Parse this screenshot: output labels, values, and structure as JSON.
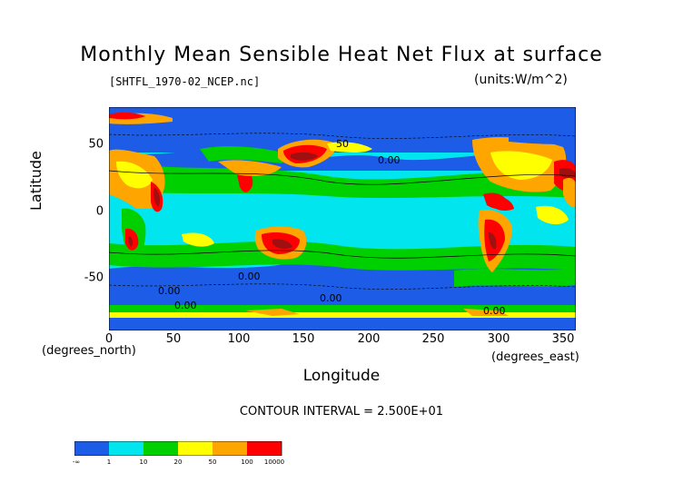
{
  "title": "Monthly Mean Sensible Heat Net Flux at surface",
  "subtitle_left": "[SHTFL_1970-02_NCEP.nc]",
  "subtitle_right": "(units:W/m^2)",
  "axes": {
    "ylabel": "Latitude",
    "xlabel": "Longitude",
    "x_unit_left": "(degrees_north)",
    "x_unit_right": "(degrees_east)",
    "x_ticks": [
      "0",
      "50",
      "100",
      "150",
      "200",
      "250",
      "300",
      "350"
    ],
    "y_ticks": [
      "50",
      "0",
      "-50"
    ]
  },
  "contour_interval": "CONTOUR INTERVAL = 2.500E+01",
  "contour_labels": [
    "50",
    "0.00",
    "0.00",
    "0.00",
    "0.00",
    "0.00",
    "0.00"
  ],
  "legend": {
    "labels": [
      "-∞",
      "1",
      "10",
      "20",
      "50",
      "100",
      "10000"
    ],
    "colors": [
      "#1c5ce6",
      "#00e5ee",
      "#00d000",
      "#ffff00",
      "#ffa500",
      "#ff0000"
    ]
  },
  "colors": {
    "ocean_cold": "#1c5ce6",
    "ocean_mid": "#00e5ee",
    "green": "#00d000",
    "yellow": "#ffff00",
    "orange": "#ffa500",
    "red": "#ff0000",
    "dark_red": "#a01010"
  }
}
